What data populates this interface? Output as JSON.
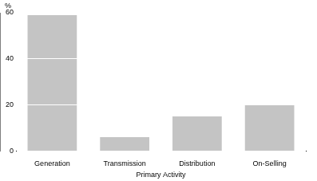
{
  "chart_data": {
    "type": "bar",
    "x_label": "Primary Activity",
    "y_label": "%",
    "categories": [
      "Generation",
      "Transmission",
      "Distribution",
      "On-Selling"
    ],
    "values": [
      59,
      6,
      15,
      20
    ],
    "color": "#c4c4c4",
    "ylim": [
      0,
      60
    ],
    "yticks": [
      0,
      20,
      40,
      60
    ],
    "grid": true
  }
}
